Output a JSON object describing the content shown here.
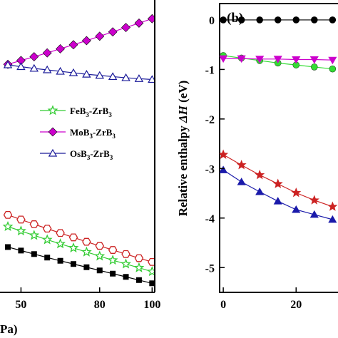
{
  "chart_data": [
    {
      "type": "line",
      "x_tick_labels": [
        "50",
        "80",
        "100"
      ],
      "x_axis_label_fragment": "Pa)",
      "xlim": [
        42,
        101
      ],
      "ylim": [
        0,
        1
      ],
      "x_ticks": [
        50,
        80,
        100
      ],
      "legend_placement": "middle-right",
      "grid": false,
      "series": [
        {
          "name_parts": [
            "FeB",
            "3",
            "-ZrB",
            "3"
          ],
          "color": "#33cc33",
          "marker": "star-open",
          "x": [
            45,
            50,
            55,
            60,
            65,
            70,
            75,
            80,
            85,
            90,
            95,
            100
          ],
          "y": [
            0.225,
            0.21,
            0.195,
            0.18,
            0.166,
            0.152,
            0.138,
            0.124,
            0.11,
            0.097,
            0.084,
            0.071
          ]
        },
        {
          "name_parts": [
            "MoB",
            "3",
            "-ZrB",
            "3"
          ],
          "color": "#cc00cc",
          "marker": "diamond-filled",
          "x": [
            45,
            50,
            55,
            60,
            65,
            70,
            75,
            80,
            85,
            90,
            95,
            100
          ],
          "y": [
            0.78,
            0.793,
            0.806,
            0.819,
            0.833,
            0.847,
            0.861,
            0.876,
            0.891,
            0.906,
            0.921,
            0.936
          ]
        },
        {
          "name_parts": [
            "OsB",
            "3",
            "-ZrB",
            "3"
          ],
          "color": "#1a1a99",
          "marker": "triangle-open",
          "x": [
            45,
            50,
            55,
            60,
            65,
            70,
            75,
            80,
            85,
            90,
            95,
            100
          ],
          "y": [
            0.778,
            0.772,
            0.766,
            0.761,
            0.756,
            0.751,
            0.746,
            0.742,
            0.738,
            0.734,
            0.731,
            0.728
          ]
        },
        {
          "color": "#cc2222",
          "marker": "hexagon-open",
          "x": [
            45,
            50,
            55,
            60,
            65,
            70,
            75,
            80,
            85,
            90,
            95,
            100
          ],
          "y": [
            0.265,
            0.249,
            0.233,
            0.218,
            0.203,
            0.188,
            0.173,
            0.159,
            0.145,
            0.131,
            0.117,
            0.104
          ]
        },
        {
          "color": "#000000",
          "marker": "square-filled",
          "x": [
            45,
            50,
            55,
            60,
            65,
            70,
            75,
            80,
            85,
            90,
            95,
            100
          ],
          "y": [
            0.155,
            0.143,
            0.131,
            0.119,
            0.108,
            0.097,
            0.086,
            0.075,
            0.064,
            0.053,
            0.042,
            0.031
          ]
        }
      ]
    },
    {
      "type": "line",
      "panel_label": "(b)",
      "ylabel_parts": [
        "Relative enthalpy ",
        "ΔH",
        " (eV)"
      ],
      "y_tick_labels": [
        "0",
        "-1",
        "-2",
        "-3",
        "-4",
        "-5"
      ],
      "y_ticks": [
        0,
        -1,
        -2,
        -3,
        -4,
        -5
      ],
      "x_tick_labels": [
        "0",
        "20"
      ],
      "x_ticks": [
        0,
        20
      ],
      "xlim": [
        -1,
        31.5
      ],
      "ylim": [
        -5.5,
        0.33
      ],
      "grid": false,
      "series": [
        {
          "color": "#000000",
          "marker": "circle-filled",
          "x": [
            0,
            5,
            10,
            15,
            20,
            25,
            30
          ],
          "y": [
            0,
            0,
            0,
            0,
            0,
            0,
            0
          ]
        },
        {
          "color": "#33dd33",
          "marker": "circle-filled",
          "x": [
            0,
            5,
            10,
            15,
            20,
            25,
            30
          ],
          "y": [
            -0.72,
            -0.77,
            -0.82,
            -0.87,
            -0.91,
            -0.95,
            -0.99
          ]
        },
        {
          "color": "#cc00cc",
          "marker": "triangle-down-filled",
          "x": [
            0,
            5,
            10,
            15,
            20,
            25,
            30
          ],
          "y": [
            -0.78,
            -0.78,
            -0.79,
            -0.79,
            -0.8,
            -0.8,
            -0.81
          ]
        },
        {
          "color": "#cc2222",
          "marker": "star-filled",
          "x": [
            0,
            5,
            10,
            15,
            20,
            25,
            30
          ],
          "y": [
            -2.72,
            -2.93,
            -3.13,
            -3.31,
            -3.49,
            -3.64,
            -3.77
          ]
        },
        {
          "color": "#1a1aaa",
          "marker": "triangle-up-filled",
          "x": [
            0,
            5,
            10,
            15,
            20,
            25,
            30
          ],
          "y": [
            -3.03,
            -3.27,
            -3.47,
            -3.66,
            -3.83,
            -3.93,
            -4.03
          ]
        }
      ]
    }
  ]
}
